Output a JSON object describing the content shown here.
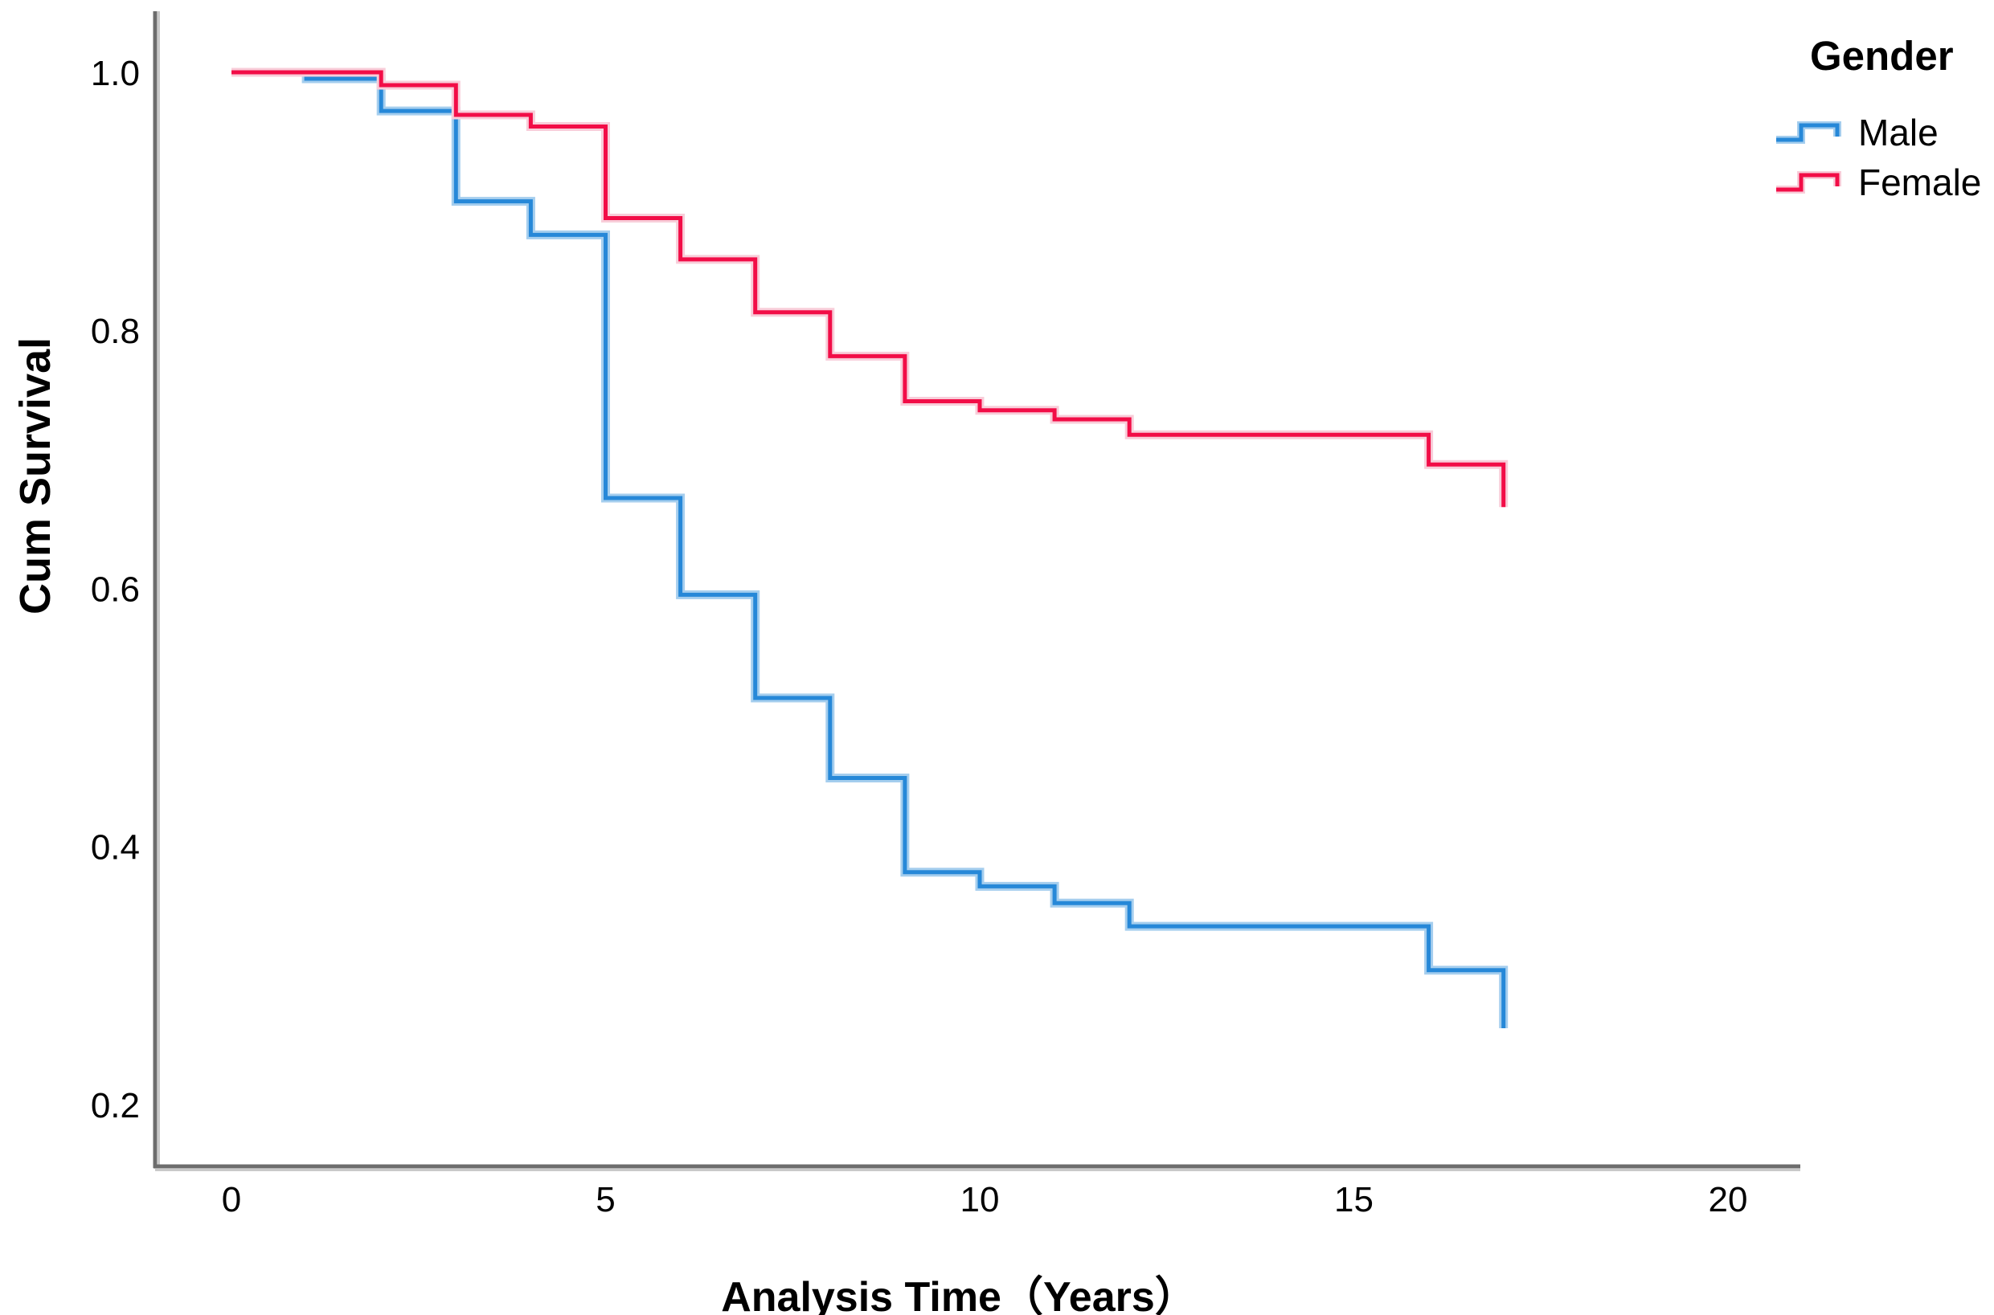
{
  "figure": {
    "y_axis": {
      "title": "Cum Survival",
      "tick_labels": [
        "1.0",
        "0.8",
        "0.6",
        "0.4",
        "0.2"
      ],
      "tick_values": [
        1.0,
        0.8,
        0.6,
        0.4,
        0.2
      ]
    },
    "x_axis": {
      "title": "Analysis Time（Years）",
      "tick_labels": [
        "0",
        "5",
        "10",
        "15",
        "20"
      ],
      "tick_values": [
        0,
        5,
        10,
        15,
        20
      ]
    },
    "legend": {
      "title": "Gender",
      "items": [
        {
          "label": "Male",
          "color": "#2688d8",
          "casing": "#a5ceee"
        },
        {
          "label": "Female",
          "color": "#f20d47",
          "casing": "#f8cdd9"
        }
      ]
    },
    "colors": {
      "axis_line": "#6d6d6d",
      "axis_shadow": "#c9c9c9",
      "text": "#000000",
      "background": "#ffffff"
    }
  },
  "chart_data": {
    "type": "line",
    "subtype": "step-post",
    "title": "",
    "xlabel": "Analysis Time（Years）",
    "ylabel": "Cum Survival",
    "xlim": [
      -1.0,
      21.2
    ],
    "ylim": [
      0.15,
      1.05
    ],
    "x_ticks": [
      0,
      5,
      10,
      15,
      20
    ],
    "y_ticks": [
      1.0,
      0.8,
      0.6,
      0.4,
      0.2
    ],
    "grid": false,
    "legend_position": "top-right",
    "legend_title": "Gender",
    "series": [
      {
        "name": "Male",
        "color": "#2688d8",
        "casing": "#a5ceee",
        "points": [
          [
            0,
            1.0
          ],
          [
            1,
            0.995
          ],
          [
            2,
            0.97
          ],
          [
            3,
            0.9
          ],
          [
            4,
            0.874
          ],
          [
            5,
            0.67
          ],
          [
            6,
            0.595
          ],
          [
            7,
            0.515
          ],
          [
            8,
            0.453
          ],
          [
            9,
            0.38
          ],
          [
            10,
            0.369
          ],
          [
            11,
            0.356
          ],
          [
            12,
            0.338
          ],
          [
            16,
            0.304
          ],
          [
            17,
            0.259
          ]
        ]
      },
      {
        "name": "Female",
        "color": "#f20d47",
        "casing": "#f8cdd9",
        "points": [
          [
            0,
            1.0
          ],
          [
            2,
            0.99
          ],
          [
            3,
            0.967
          ],
          [
            4,
            0.958
          ],
          [
            5,
            0.887
          ],
          [
            6,
            0.855
          ],
          [
            7,
            0.814
          ],
          [
            8,
            0.78
          ],
          [
            9,
            0.745
          ],
          [
            10,
            0.738
          ],
          [
            11,
            0.731
          ],
          [
            12,
            0.719
          ],
          [
            16,
            0.696
          ],
          [
            17,
            0.663
          ]
        ]
      }
    ]
  }
}
